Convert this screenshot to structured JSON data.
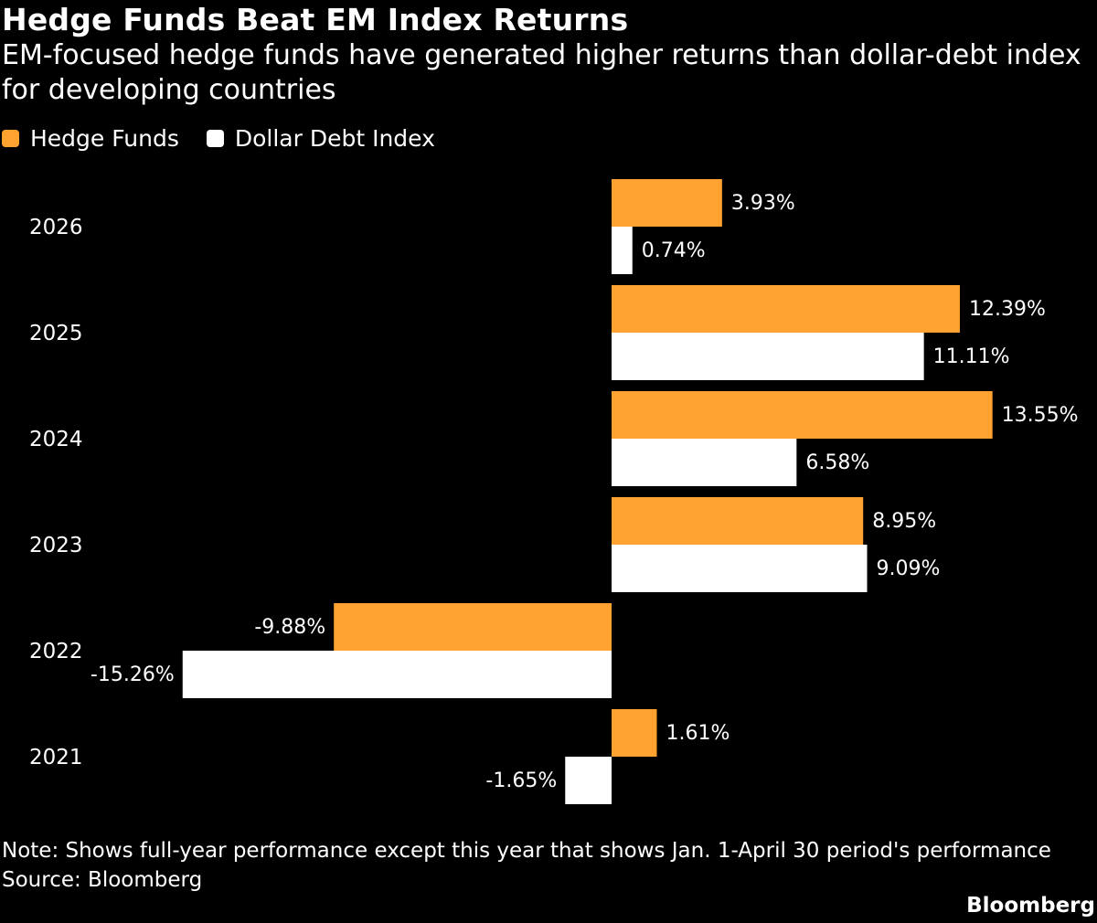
{
  "header": {
    "title": "Hedge Funds Beat EM Index Returns",
    "subtitle": "EM-focused hedge funds have generated higher returns than dollar-debt index for developing countries"
  },
  "legend": [
    {
      "label": "Hedge Funds",
      "color": "#FFA22F"
    },
    {
      "label": "Dollar Debt Index",
      "color": "#FFFFFF"
    }
  ],
  "footer": {
    "note": "Note: Shows full-year performance except this year that shows Jan. 1-April 30 period's performance",
    "source": "Source: Bloomberg",
    "logo": "Bloomberg"
  },
  "chart_data": {
    "type": "bar",
    "orientation": "horizontal",
    "categories": [
      "2026",
      "2025",
      "2024",
      "2023",
      "2022",
      "2021"
    ],
    "series": [
      {
        "name": "Hedge Funds",
        "color": "#FFA22F",
        "values": [
          3.93,
          12.39,
          13.55,
          8.95,
          -9.88,
          1.61
        ],
        "labels": [
          "3.93%",
          "12.39%",
          "13.55%",
          "8.95%",
          "-9.88%",
          "1.61%"
        ]
      },
      {
        "name": "Dollar Debt Index",
        "color": "#FFFFFF",
        "values": [
          0.74,
          11.11,
          6.58,
          9.09,
          -15.26,
          -1.65
        ],
        "labels": [
          "0.74%",
          "11.11%",
          "6.58%",
          "9.09%",
          "-15.26%",
          "-1.65%"
        ]
      }
    ],
    "value_unit": "%",
    "title": "Hedge Funds Beat EM Index Returns",
    "xlabel": "",
    "ylabel": "",
    "grid": false,
    "legend_position": "top-left"
  }
}
